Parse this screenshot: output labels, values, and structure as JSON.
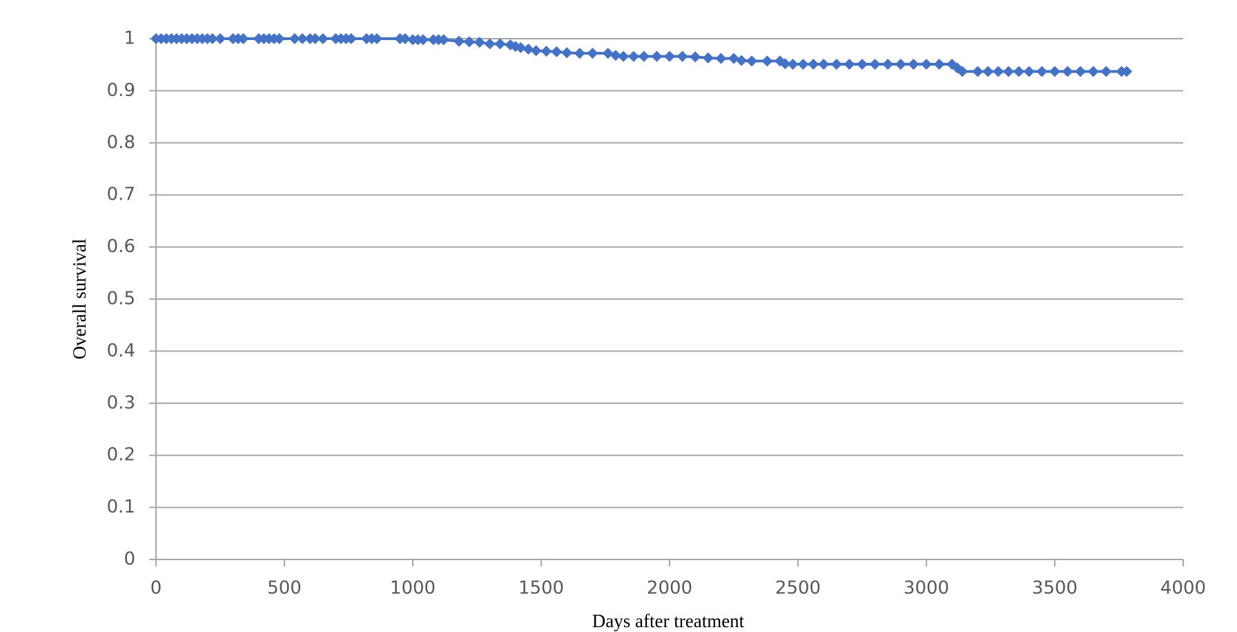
{
  "chart_data": {
    "type": "line",
    "x_label": "Days after treatment",
    "y_label": "Overall survival",
    "color": "#4472c4",
    "x": [
      0,
      20,
      40,
      60,
      80,
      100,
      120,
      140,
      160,
      180,
      200,
      220,
      250,
      300,
      320,
      340,
      400,
      420,
      440,
      460,
      480,
      540,
      570,
      600,
      620,
      650,
      700,
      720,
      740,
      760,
      820,
      840,
      860,
      950,
      970,
      1000,
      1020,
      1040,
      1080,
      1100,
      1120,
      1180,
      1220,
      1260,
      1300,
      1340,
      1380,
      1400,
      1420,
      1450,
      1480,
      1520,
      1560,
      1600,
      1650,
      1700,
      1760,
      1790,
      1820,
      1860,
      1900,
      1950,
      2000,
      2050,
      2100,
      2150,
      2200,
      2250,
      2280,
      2320,
      2380,
      2430,
      2450,
      2480,
      2520,
      2560,
      2600,
      2650,
      2700,
      2750,
      2800,
      2850,
      2900,
      2950,
      3000,
      3050,
      3100,
      3120,
      3140,
      3200,
      3240,
      3280,
      3320,
      3360,
      3400,
      3450,
      3500,
      3550,
      3600,
      3650,
      3700,
      3760,
      3780
    ],
    "values": [
      1,
      1,
      1,
      1,
      1,
      1,
      1,
      1,
      1,
      1,
      1,
      1,
      1,
      1,
      1,
      1,
      1,
      1,
      1,
      1,
      1,
      1,
      1,
      1,
      1,
      1,
      1,
      1,
      1,
      1,
      1,
      1,
      1,
      1,
      1,
      0.998,
      0.998,
      0.998,
      0.998,
      0.998,
      0.998,
      0.995,
      0.994,
      0.993,
      0.99,
      0.99,
      0.988,
      0.985,
      0.983,
      0.98,
      0.977,
      0.976,
      0.975,
      0.973,
      0.972,
      0.972,
      0.972,
      0.968,
      0.966,
      0.966,
      0.966,
      0.966,
      0.966,
      0.966,
      0.965,
      0.963,
      0.962,
      0.962,
      0.958,
      0.957,
      0.957,
      0.957,
      0.952,
      0.951,
      0.951,
      0.951,
      0.951,
      0.951,
      0.951,
      0.951,
      0.951,
      0.951,
      0.951,
      0.951,
      0.951,
      0.951,
      0.951,
      0.944,
      0.937,
      0.937,
      0.937,
      0.937,
      0.937,
      0.937,
      0.937,
      0.937,
      0.937,
      0.937,
      0.937,
      0.937,
      0.937,
      0.937,
      0.937
    ],
    "xlim": [
      0,
      4000
    ],
    "xticks": [
      0,
      500,
      1000,
      1500,
      2000,
      2500,
      3000,
      3500,
      4000
    ],
    "ylim": [
      0,
      1
    ],
    "yticks": [
      0,
      0.1,
      0.2,
      0.3,
      0.4,
      0.5,
      0.6,
      0.7,
      0.8,
      0.9,
      1
    ],
    "grid": true
  }
}
